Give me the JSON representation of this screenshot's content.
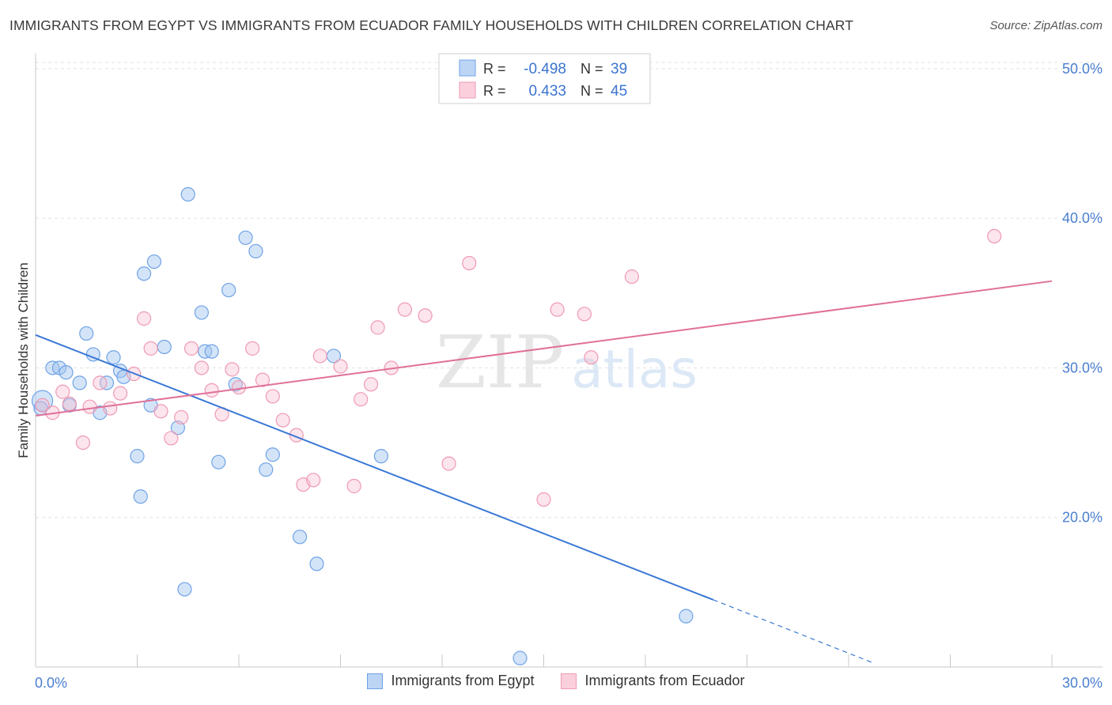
{
  "title": "IMMIGRANTS FROM EGYPT VS IMMIGRANTS FROM ECUADOR FAMILY HOUSEHOLDS WITH CHILDREN CORRELATION CHART",
  "source": "Source: ZipAtlas.com",
  "watermark": {
    "zip": "ZIP",
    "atlas": "atlas"
  },
  "legend": {
    "r_label": "R =",
    "n_label": "N =",
    "rows": [
      {
        "r": "-0.498",
        "n": "39",
        "color": "#6fa3e6"
      },
      {
        "r": "0.433",
        "n": "45",
        "color": "#ef9ab4"
      }
    ]
  },
  "chart_data": {
    "type": "scatter",
    "xlabel": "",
    "ylabel": "Family Households with Children",
    "xlim": [
      0.0,
      30.0
    ],
    "ylim": [
      10.0,
      51.0
    ],
    "x_tick_labels": [
      {
        "value": 0,
        "label": "0.0%"
      },
      {
        "value": 30,
        "label": "30.0%"
      }
    ],
    "y_tick_labels": [
      {
        "value": 20,
        "label": "20.0%"
      },
      {
        "value": 30,
        "label": "30.0%"
      },
      {
        "value": 40,
        "label": "40.0%"
      },
      {
        "value": 50,
        "label": "50.0%"
      }
    ],
    "grid": true,
    "legend_position": "top-center",
    "series": [
      {
        "name": "Immigrants from Egypt",
        "color": "#6fa3e6",
        "trend": {
          "x": [
            0.0,
            20.0
          ],
          "y": [
            32.2,
            14.5
          ],
          "dashed_to": [
            24.7,
            10.3
          ]
        },
        "points": [
          [
            0.2,
            27.8
          ],
          [
            0.5,
            30.0
          ],
          [
            0.7,
            30.0
          ],
          [
            0.9,
            29.7
          ],
          [
            1.0,
            27.5
          ],
          [
            1.3,
            29.0
          ],
          [
            1.5,
            32.3
          ],
          [
            1.7,
            30.9
          ],
          [
            1.9,
            27.0
          ],
          [
            2.1,
            29.0
          ],
          [
            2.3,
            30.7
          ],
          [
            2.5,
            29.8
          ],
          [
            2.6,
            29.4
          ],
          [
            3.0,
            24.1
          ],
          [
            3.1,
            21.4
          ],
          [
            3.2,
            36.3
          ],
          [
            3.4,
            27.5
          ],
          [
            3.5,
            37.1
          ],
          [
            3.8,
            31.4
          ],
          [
            4.2,
            26.0
          ],
          [
            4.4,
            15.2
          ],
          [
            4.5,
            41.6
          ],
          [
            4.9,
            33.7
          ],
          [
            5.0,
            31.1
          ],
          [
            5.2,
            31.1
          ],
          [
            5.4,
            23.7
          ],
          [
            5.7,
            35.2
          ],
          [
            5.9,
            28.9
          ],
          [
            6.2,
            38.7
          ],
          [
            6.5,
            37.8
          ],
          [
            6.8,
            23.2
          ],
          [
            7.0,
            24.2
          ],
          [
            7.8,
            18.7
          ],
          [
            8.3,
            16.9
          ],
          [
            8.8,
            30.8
          ],
          [
            10.2,
            24.1
          ],
          [
            14.3,
            10.6
          ],
          [
            19.2,
            13.4
          ],
          [
            0.15,
            27.3
          ]
        ]
      },
      {
        "name": "Immigrants from Ecuador",
        "color": "#ef9ab4",
        "trend": {
          "x": [
            0.0,
            30.0
          ],
          "y": [
            26.8,
            35.8
          ]
        },
        "points": [
          [
            0.2,
            27.5
          ],
          [
            0.5,
            27.0
          ],
          [
            0.8,
            28.4
          ],
          [
            1.0,
            27.6
          ],
          [
            1.4,
            25.0
          ],
          [
            1.6,
            27.4
          ],
          [
            1.9,
            29.0
          ],
          [
            2.2,
            27.3
          ],
          [
            2.5,
            28.3
          ],
          [
            2.9,
            29.6
          ],
          [
            3.2,
            33.3
          ],
          [
            3.4,
            31.3
          ],
          [
            3.7,
            27.1
          ],
          [
            4.0,
            25.3
          ],
          [
            4.3,
            26.7
          ],
          [
            4.6,
            31.3
          ],
          [
            4.9,
            30.0
          ],
          [
            5.2,
            28.5
          ],
          [
            5.5,
            26.9
          ],
          [
            5.8,
            29.9
          ],
          [
            6.0,
            28.7
          ],
          [
            6.4,
            31.3
          ],
          [
            6.7,
            29.2
          ],
          [
            7.0,
            28.1
          ],
          [
            7.3,
            26.5
          ],
          [
            7.7,
            25.5
          ],
          [
            7.9,
            22.2
          ],
          [
            8.2,
            22.5
          ],
          [
            8.4,
            30.8
          ],
          [
            9.0,
            30.1
          ],
          [
            9.4,
            22.1
          ],
          [
            9.6,
            27.9
          ],
          [
            9.9,
            28.9
          ],
          [
            10.1,
            32.7
          ],
          [
            10.5,
            30.0
          ],
          [
            10.9,
            33.9
          ],
          [
            11.5,
            33.5
          ],
          [
            12.2,
            23.6
          ],
          [
            12.8,
            37.0
          ],
          [
            15.0,
            21.2
          ],
          [
            15.4,
            33.9
          ],
          [
            16.2,
            33.6
          ],
          [
            16.4,
            30.7
          ],
          [
            17.6,
            36.1
          ],
          [
            28.3,
            38.8
          ]
        ]
      }
    ]
  }
}
